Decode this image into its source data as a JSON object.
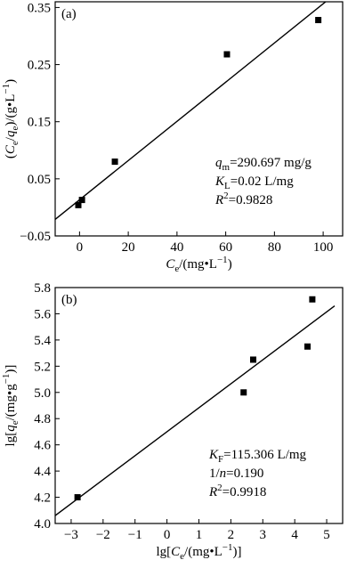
{
  "chart_data": [
    {
      "type": "scatter",
      "panel_label": "(a)",
      "xlabel": {
        "pre": "C",
        "sub": "e",
        "post": "/(mg•L",
        "sup": "−1",
        "end": ")"
      },
      "ylabel": {
        "a": "(C",
        "a_sub": "e",
        "b": "/q",
        "b_sub": "e",
        "c": ")/(g•L",
        "c_sup": "−1",
        "d": ")"
      },
      "xlim": [
        -10,
        108
      ],
      "ylim": [
        -0.05,
        0.36
      ],
      "xticks": [
        0,
        20,
        40,
        60,
        80,
        100
      ],
      "xtick_labels": [
        "0",
        "20",
        "40",
        "60",
        "80",
        "100"
      ],
      "yticks": [
        -0.05,
        0.05,
        0.15,
        0.25,
        0.35
      ],
      "ytick_labels": [
        "−0.05",
        "0.05",
        "0.15",
        "0.25",
        "0.35"
      ],
      "points": [
        {
          "x": -0.5,
          "y": 0.004
        },
        {
          "x": 1.0,
          "y": 0.013
        },
        {
          "x": 14.5,
          "y": 0.08
        },
        {
          "x": 60.5,
          "y": 0.268
        },
        {
          "x": 98.0,
          "y": 0.328
        }
      ],
      "fit_line": {
        "x": [
          -10,
          108
        ],
        "y": [
          -0.021,
          0.384
        ]
      },
      "annotation": [
        {
          "main": "q",
          "sub": "m",
          "rest": "=290.697 mg/g"
        },
        {
          "main": "K",
          "sub": "L",
          "rest": "=0.02 L/mg"
        },
        {
          "main": "R",
          "sup": "2",
          "rest": "=0.9828"
        }
      ]
    },
    {
      "type": "scatter",
      "panel_label": "(b)",
      "xlabel": {
        "pre": "lg[C",
        "sub": "e",
        "post": "/(mg•L",
        "sup": "−1",
        "end": ")]"
      },
      "ylabel": {
        "a": "lg[q",
        "a_sub": "e",
        "b": "/(mg•g",
        "b_sup": "−1",
        "c": ")]"
      },
      "xlim": [
        -3.5,
        5.5
      ],
      "ylim": [
        4.0,
        5.8
      ],
      "xticks": [
        -3,
        -2,
        -1,
        0,
        1,
        2,
        3,
        4,
        5
      ],
      "xtick_labels": [
        "−3",
        "−2",
        "−1",
        "0",
        "1",
        "2",
        "3",
        "4",
        "5"
      ],
      "yticks": [
        4.0,
        4.2,
        4.4,
        4.6,
        4.8,
        5.0,
        5.2,
        5.4,
        5.6,
        5.8
      ],
      "ytick_labels": [
        "4.0",
        "4.2",
        "4.4",
        "4.6",
        "4.8",
        "5.0",
        "5.2",
        "5.4",
        "5.6",
        "5.8"
      ],
      "points": [
        {
          "x": -2.8,
          "y": 4.2
        },
        {
          "x": 2.4,
          "y": 5.0
        },
        {
          "x": 2.7,
          "y": 5.25
        },
        {
          "x": 4.4,
          "y": 5.35
        },
        {
          "x": 4.55,
          "y": 5.71
        }
      ],
      "fit_line": {
        "x": [
          -3.5,
          5.25
        ],
        "y": [
          4.06,
          5.66
        ]
      },
      "annotation": [
        {
          "main": "K",
          "sub": "F",
          "rest": "=115.306 L/mg"
        },
        {
          "main": "1/",
          "italic_main": false,
          "mid": "n",
          "rest": "=0.190"
        },
        {
          "main": "R",
          "sup": "2",
          "rest": "=0.9918"
        }
      ]
    }
  ]
}
